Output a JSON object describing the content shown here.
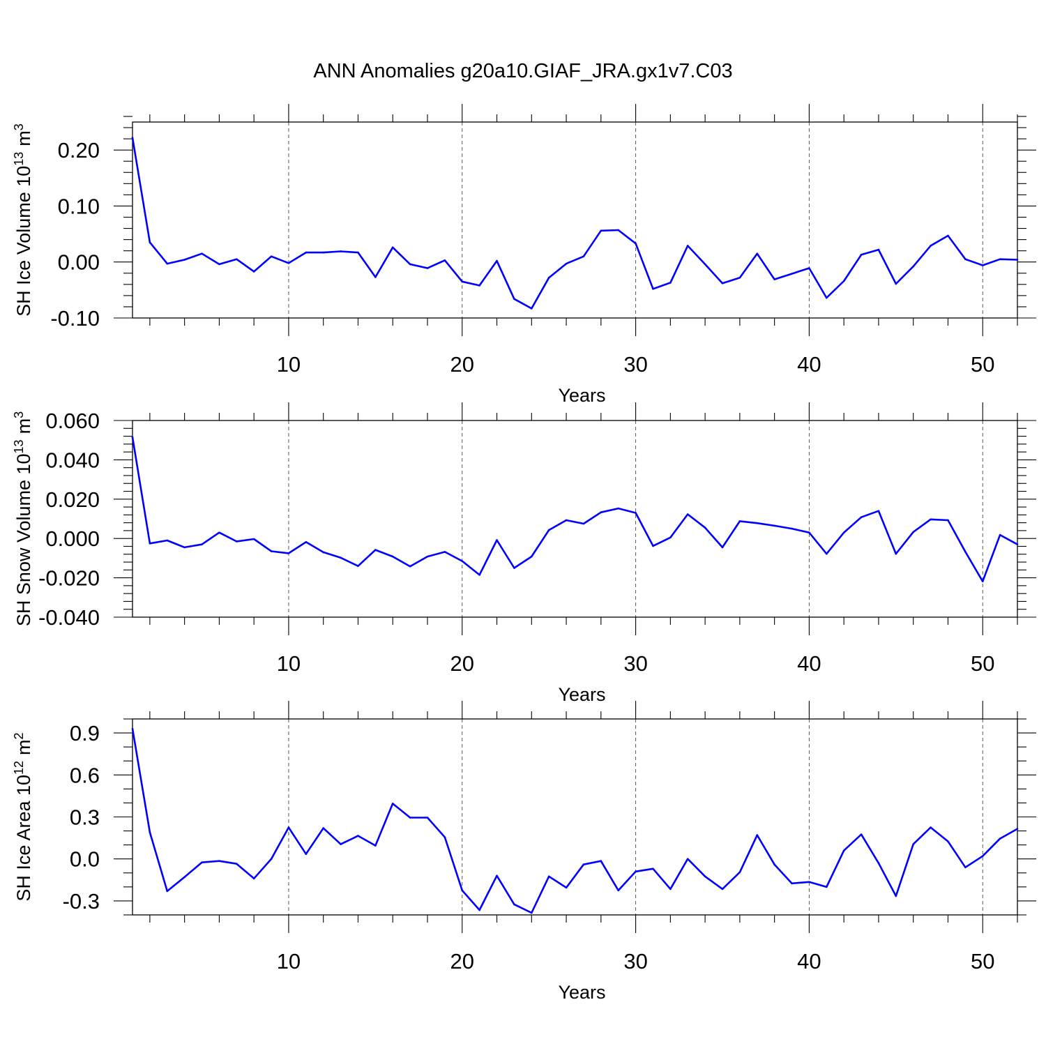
{
  "title": "ANN Anomalies g20a10.GIAF_JRA.gx1v7.C03",
  "chart_data": [
    {
      "type": "line",
      "xlabel": "Years",
      "ylabel": {
        "text": "SH Ice Volume 10",
        "exponent": "13",
        "unit": "m",
        "unit_exponent": "3"
      },
      "xlim": [
        1,
        52
      ],
      "ylim": [
        -0.1,
        0.25
      ],
      "x_ticks": [
        10,
        20,
        30,
        40,
        50
      ],
      "x_tick_labels": [
        "10",
        "20",
        "30",
        "40",
        "50"
      ],
      "y_ticks": [
        -0.1,
        0.0,
        0.1,
        0.2
      ],
      "y_tick_labels": [
        "-0.10",
        "0.00",
        "0.10",
        "0.20"
      ],
      "y_minor_step": 0.02,
      "grid_x": "dashed vertical at major x ticks",
      "line_color": "#0000ff",
      "x": [
        1,
        2,
        3,
        4,
        5,
        6,
        7,
        8,
        9,
        10,
        11,
        12,
        13,
        14,
        15,
        16,
        17,
        18,
        19,
        20,
        21,
        22,
        23,
        24,
        25,
        26,
        27,
        28,
        29,
        30,
        31,
        32,
        33,
        34,
        35,
        36,
        37,
        38,
        39,
        40,
        41,
        42,
        43,
        44,
        45,
        46,
        47,
        48,
        49,
        50,
        51,
        52
      ],
      "values": [
        0.222,
        0.035,
        -0.003,
        0.004,
        0.015,
        -0.004,
        0.005,
        -0.017,
        0.01,
        -0.002,
        0.017,
        0.017,
        0.019,
        0.017,
        -0.027,
        0.026,
        -0.004,
        -0.011,
        0.003,
        -0.035,
        -0.042,
        0.002,
        -0.066,
        -0.083,
        -0.028,
        -0.003,
        0.01,
        0.056,
        0.057,
        0.033,
        -0.048,
        -0.037,
        0.029,
        -0.004,
        -0.038,
        -0.028,
        0.015,
        -0.031,
        -0.021,
        -0.011,
        -0.064,
        -0.034,
        0.013,
        0.022,
        -0.039,
        -0.008,
        0.029,
        0.047,
        0.005,
        -0.006,
        0.005,
        0.004
      ]
    },
    {
      "type": "line",
      "xlabel": "Years",
      "ylabel": {
        "text": "SH Snow Volume 10",
        "exponent": "13",
        "unit": "m",
        "unit_exponent": "3"
      },
      "xlim": [
        1,
        52
      ],
      "ylim": [
        -0.04,
        0.06
      ],
      "x_ticks": [
        10,
        20,
        30,
        40,
        50
      ],
      "x_tick_labels": [
        "10",
        "20",
        "30",
        "40",
        "50"
      ],
      "y_ticks": [
        -0.04,
        -0.02,
        0.0,
        0.02,
        0.04,
        0.06
      ],
      "y_tick_labels": [
        "-0.040",
        "-0.020",
        "0.000",
        "0.020",
        "0.040",
        "0.060"
      ],
      "y_minor_step": 0.004,
      "grid_x": "dashed vertical at major x ticks",
      "line_color": "#0000ff",
      "x": [
        1,
        2,
        3,
        4,
        5,
        6,
        7,
        8,
        9,
        10,
        11,
        12,
        13,
        14,
        15,
        16,
        17,
        18,
        19,
        20,
        21,
        22,
        23,
        24,
        25,
        26,
        27,
        28,
        29,
        30,
        31,
        32,
        33,
        34,
        35,
        36,
        37,
        38,
        39,
        40,
        41,
        42,
        43,
        44,
        45,
        46,
        47,
        48,
        49,
        50,
        51,
        52
      ],
      "values": [
        0.0515,
        -0.0025,
        -0.001,
        -0.0045,
        -0.003,
        0.003,
        -0.0015,
        -0.0003,
        -0.0065,
        -0.0075,
        -0.0018,
        -0.007,
        -0.0098,
        -0.014,
        -0.0058,
        -0.0092,
        -0.0142,
        -0.0092,
        -0.0068,
        -0.0115,
        -0.0185,
        -0.0008,
        -0.015,
        -0.0092,
        0.0043,
        0.0093,
        0.0075,
        0.0133,
        0.0153,
        0.013,
        -0.0038,
        0.0005,
        0.0123,
        0.0055,
        -0.0045,
        0.0088,
        0.0078,
        0.0065,
        0.005,
        0.003,
        -0.0078,
        0.003,
        0.0108,
        0.014,
        -0.0078,
        0.0033,
        0.0097,
        0.0093,
        -0.0068,
        -0.0218,
        0.0018,
        -0.003
      ]
    },
    {
      "type": "line",
      "xlabel": "Years",
      "ylabel": {
        "text": "SH Ice Area 10",
        "exponent": "12",
        "unit": "m",
        "unit_exponent": "2"
      },
      "xlim": [
        1,
        52
      ],
      "ylim": [
        -0.4,
        1.0
      ],
      "x_ticks": [
        10,
        20,
        30,
        40,
        50
      ],
      "x_tick_labels": [
        "10",
        "20",
        "30",
        "40",
        "50"
      ],
      "y_ticks": [
        -0.3,
        0.0,
        0.3,
        0.6,
        0.9
      ],
      "y_tick_labels": [
        "-0.3",
        "0.0",
        "0.3",
        "0.6",
        "0.9"
      ],
      "y_minor_step": 0.1,
      "grid_x": "dashed vertical at major x ticks",
      "line_color": "#0000ff",
      "x": [
        1,
        2,
        3,
        4,
        5,
        6,
        7,
        8,
        9,
        10,
        11,
        12,
        13,
        14,
        15,
        16,
        17,
        18,
        19,
        20,
        21,
        22,
        23,
        24,
        25,
        26,
        27,
        28,
        29,
        30,
        31,
        32,
        33,
        34,
        35,
        36,
        37,
        38,
        39,
        40,
        41,
        42,
        43,
        44,
        45,
        46,
        47,
        48,
        49,
        50,
        51,
        52
      ],
      "values": [
        0.93,
        0.19,
        -0.23,
        -0.13,
        -0.025,
        -0.015,
        -0.035,
        -0.14,
        0.0,
        0.225,
        0.035,
        0.22,
        0.105,
        0.165,
        0.095,
        0.395,
        0.295,
        0.295,
        0.155,
        -0.225,
        -0.365,
        -0.12,
        -0.325,
        -0.385,
        -0.125,
        -0.205,
        -0.04,
        -0.015,
        -0.225,
        -0.09,
        -0.07,
        -0.215,
        0.0,
        -0.125,
        -0.215,
        -0.095,
        0.17,
        -0.04,
        -0.175,
        -0.165,
        -0.2,
        0.06,
        0.175,
        -0.03,
        -0.265,
        0.105,
        0.225,
        0.125,
        -0.06,
        0.02,
        0.145,
        0.215
      ]
    }
  ]
}
